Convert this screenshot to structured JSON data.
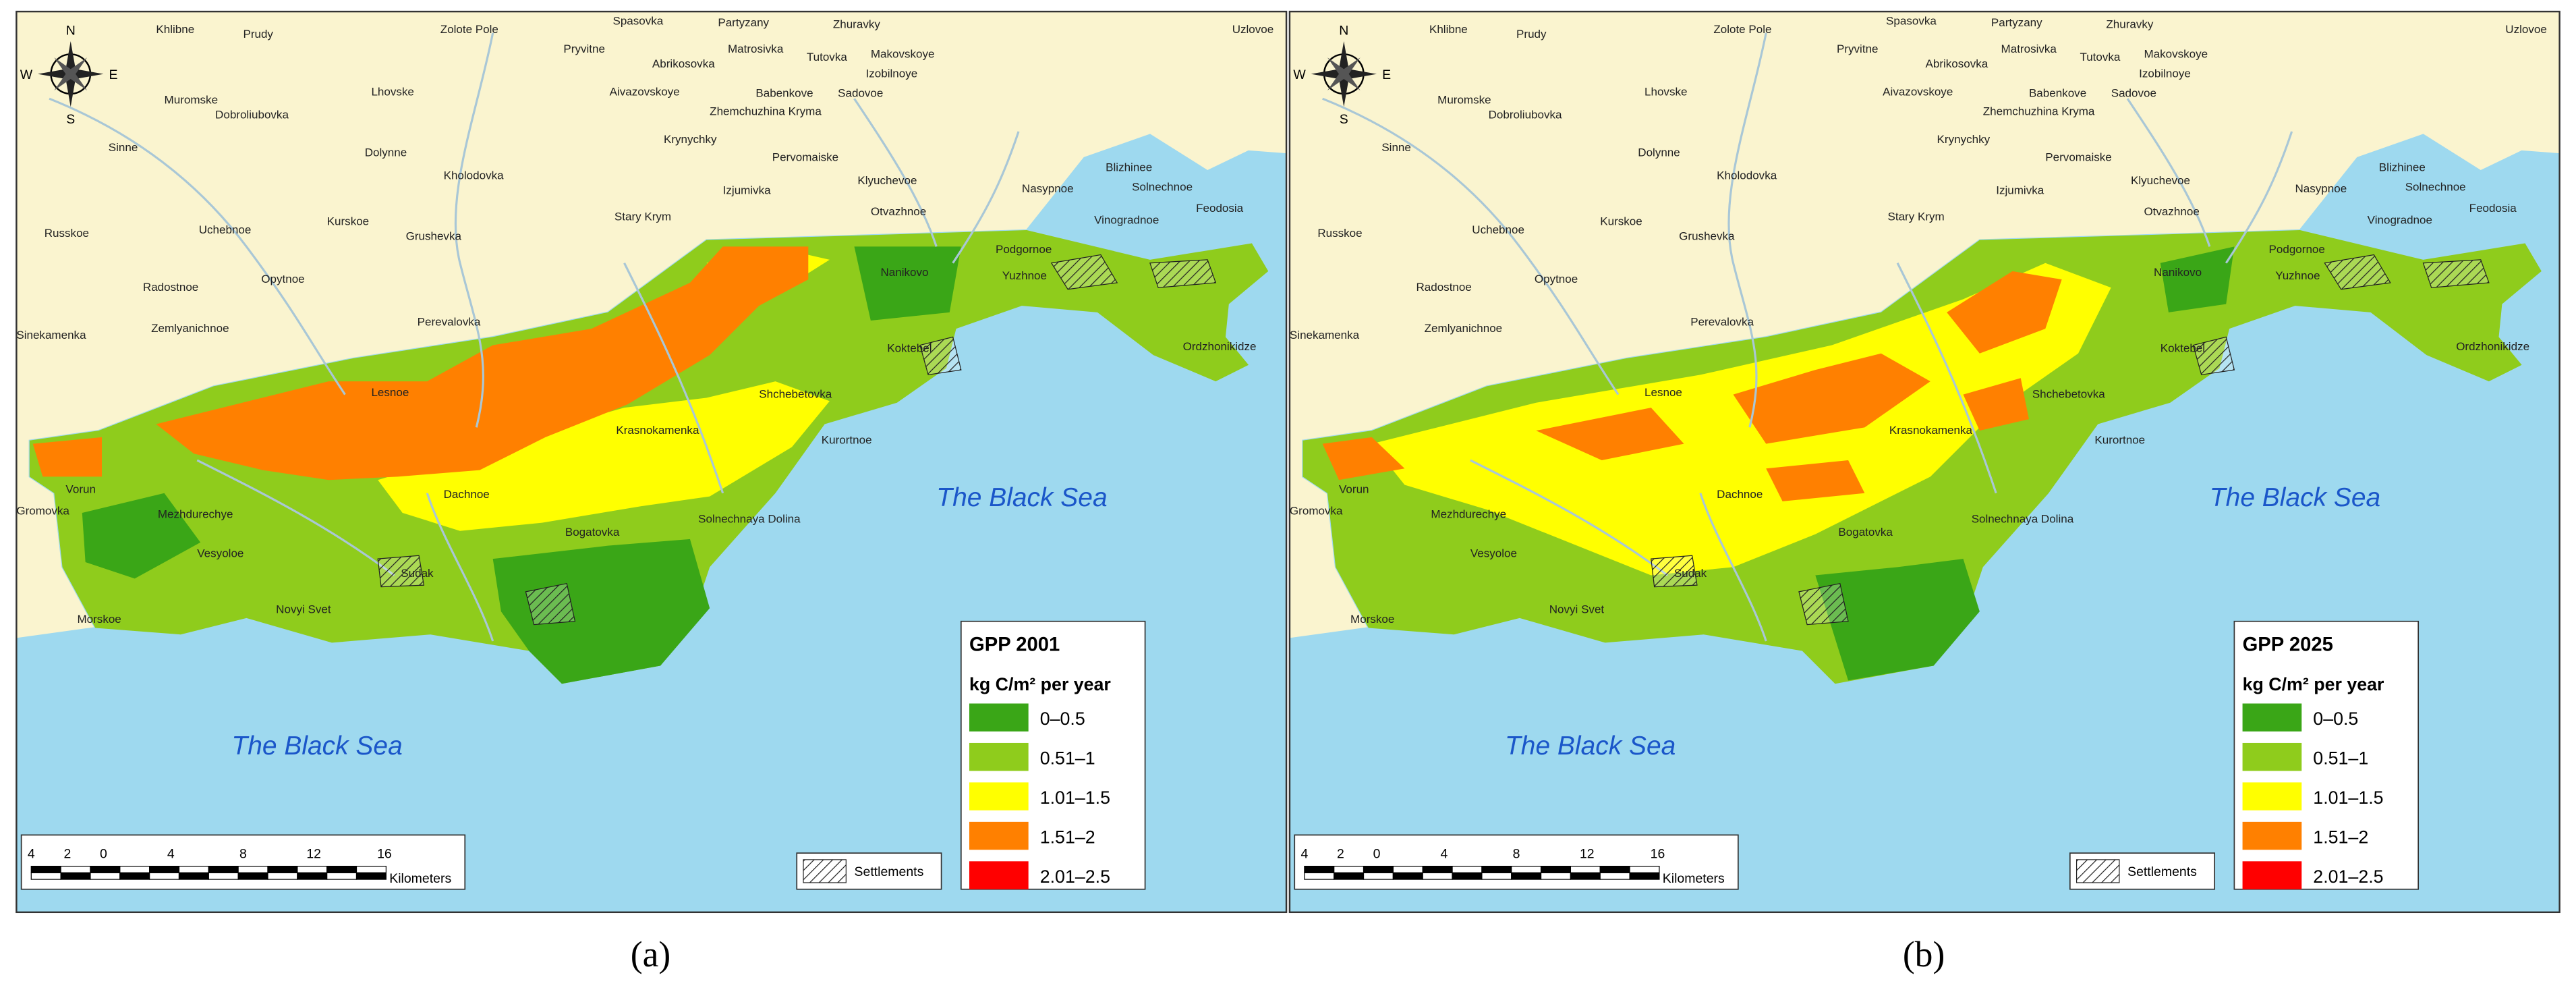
{
  "map_labels": [
    "Khlibne",
    "Prudy",
    "Zolote Pole",
    "Spasovka",
    "Partyzany",
    "Zhuravky",
    "Uzlovoe",
    "Pryvitne",
    "Abrikosovka",
    "Matrosivka",
    "Tutovka",
    "Makovskoye",
    "Izobilnoye",
    "Muromske",
    "Dobroliubovka",
    "Lhovske",
    "Aivazovskoye",
    "Babenkove",
    "Sadovoe",
    "Zhemchuzhina Kryma",
    "Sinne",
    "Dolynne",
    "Krynychky",
    "Pervomaiske",
    "Kholodovka",
    "Izjumivka",
    "Klyuchevoe",
    "Blizhinee",
    "Nasypnoe",
    "Solnechnoe",
    "Otvazhnoe",
    "Stary Krym",
    "Kurskoe",
    "Vinogradnoe",
    "Feodosia",
    "Russkoe",
    "Grushevka",
    "Uchebnoe",
    "Podgornoe",
    "Nanikovo",
    "Opytnoe",
    "Radostnoe",
    "Yuzhnoe",
    "Sinekamenka",
    "Zemlyanichnoe",
    "Perevalovka",
    "Koktebel",
    "Ordzhonikidze",
    "Lesnoe",
    "Shchebetovka",
    "Krasnokamenka",
    "Kurortnoe",
    "Vorun",
    "Gromovka",
    "Dachnoe",
    "Mezhdurechye",
    "Solnechnaya Dolina",
    "Bogatovka",
    "Vesyoloe",
    "Sudak",
    "Novyi Svet",
    "Morskoe"
  ],
  "panels": [
    {
      "caption": "(a)",
      "legend": {
        "title": "GPP 2001",
        "unit": "kg C/m² per year",
        "classes": [
          {
            "label": "0–0.5",
            "color": "#3aa617"
          },
          {
            "label": "0.51–1",
            "color": "#8fcc1c"
          },
          {
            "label": "1.01–1.5",
            "color": "#ffff00"
          },
          {
            "label": "1.51–2",
            "color": "#ff8000"
          },
          {
            "label": "2.01–2.5",
            "color": "#ff0000"
          }
        ]
      },
      "settlements_label": "Settlements",
      "sea_labels": [
        "The Black Sea",
        "The Black Sea"
      ],
      "scale": {
        "ticks": [
          "4",
          "2",
          "0",
          "4",
          "8",
          "12",
          "16"
        ],
        "unit": "Kilometers"
      },
      "compass": {
        "n": "N",
        "e": "E",
        "s": "S",
        "w": "W"
      }
    },
    {
      "caption": "(b)",
      "legend": {
        "title": "GPP 2025",
        "unit": "kg C/m² per year",
        "classes": [
          {
            "label": "0–0.5",
            "color": "#3aa617"
          },
          {
            "label": "0.51–1",
            "color": "#8fcc1c"
          },
          {
            "label": "1.01–1.5",
            "color": "#ffff00"
          },
          {
            "label": "1.51–2",
            "color": "#ff8000"
          },
          {
            "label": "2.01–2.5",
            "color": "#ff0000"
          }
        ]
      },
      "settlements_label": "Settlements",
      "sea_labels": [
        "The Black Sea",
        "The Black Sea"
      ],
      "scale": {
        "ticks": [
          "4",
          "2",
          "0",
          "4",
          "8",
          "12",
          "16"
        ],
        "unit": "Kilometers"
      },
      "compass": {
        "n": "N",
        "e": "E",
        "s": "S",
        "w": "W"
      }
    }
  ]
}
